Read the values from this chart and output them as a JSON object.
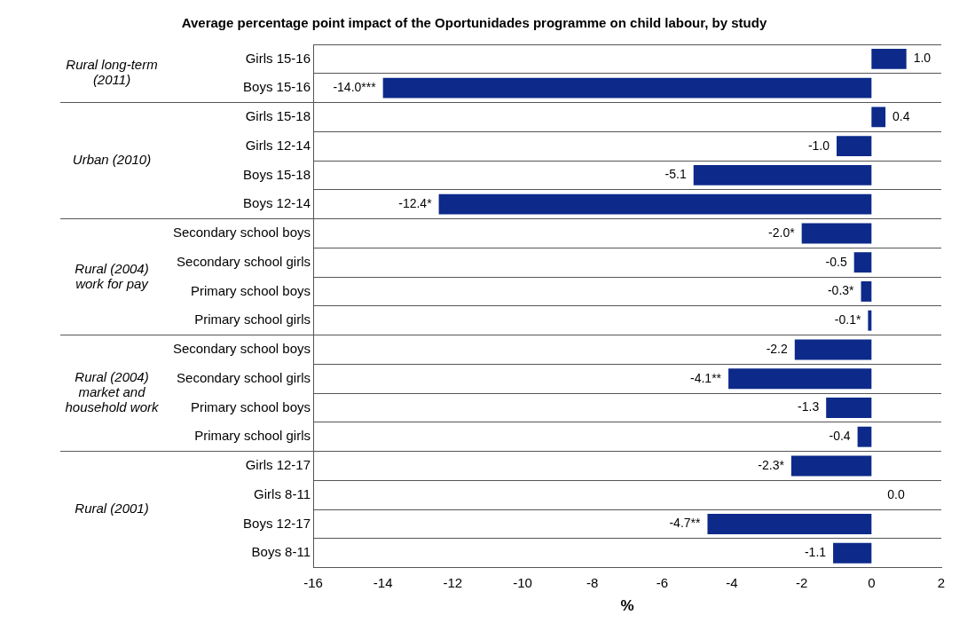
{
  "chart_data": {
    "type": "bar",
    "orientation": "horizontal",
    "title": "Average percentage point impact of the Oportunidades programme on child labour, by study",
    "xlabel": "%",
    "categories": [
      "Girls 15-16",
      "Boys 15-16",
      "Girls 15-18",
      "Girls 12-14",
      "Boys 15-18",
      "Boys 12-14",
      "Secondary school boys",
      "Secondary school girls",
      "Primary school boys",
      "Primary school girls",
      "Secondary school boys",
      "Secondary school girls",
      "Primary school boys",
      "Primary school girls",
      "Girls 12-17",
      "Girls 8-11",
      "Boys 12-17",
      "Boys 8-11"
    ],
    "values": [
      1.0,
      -14.0,
      0.4,
      -1.0,
      -5.1,
      -12.4,
      -2.0,
      -0.5,
      -0.3,
      -0.1,
      -2.2,
      -4.1,
      -1.3,
      -0.4,
      -2.3,
      0.0,
      -4.7,
      -1.1
    ],
    "value_labels": [
      "1.0",
      "-14.0***",
      "0.4",
      "-1.0",
      "-5.1",
      "-12.4*",
      "-2.0*",
      "-0.5",
      "-0.3*",
      "-0.1*",
      "-2.2",
      "-4.1**",
      "-1.3",
      "-0.4",
      "-2.3*",
      "0.0",
      "-4.7**",
      "-1.1"
    ],
    "color": "#0d2a8a",
    "xlim": [
      -16,
      2
    ],
    "xticks": [
      -16,
      -14,
      -12,
      -10,
      -8,
      -6,
      -4,
      -2,
      0,
      2
    ],
    "grid": "y",
    "legend": false,
    "annotations": [
      "Rural long-term (2011)",
      "Urban (2010)",
      "Rural (2004) work for pay",
      "Rural (2004) market and household work",
      "Rural (2001)"
    ]
  }
}
